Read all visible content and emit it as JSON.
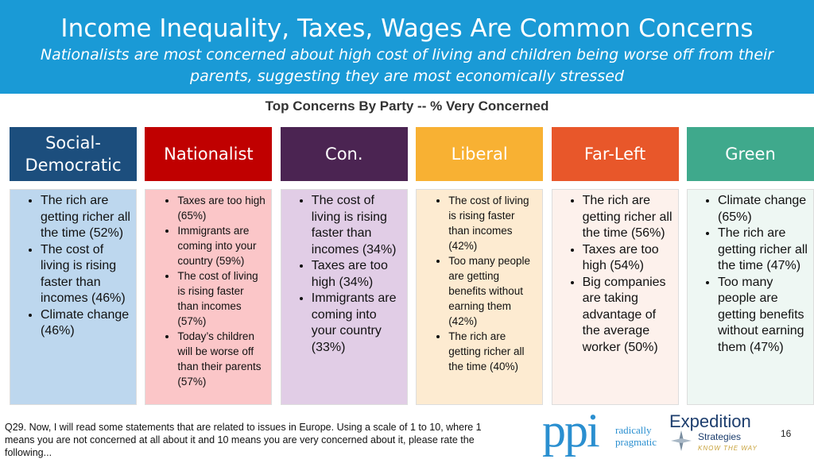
{
  "header": {
    "title": "Income Inequality, Taxes, Wages Are Common Concerns",
    "subtitle": "Nationalists are most concerned about high cost of living and children being worse off from their parents, suggesting they are most economically stressed"
  },
  "section_title": "Top Concerns By Party -- % Very Concerned",
  "columns": [
    {
      "party": "Social-Democratic",
      "items": [
        "The rich are getting richer all the time (52%)",
        "The cost of living is rising faster than incomes (46%)",
        "Climate change (46%)"
      ]
    },
    {
      "party": "Nationalist",
      "items": [
        "Taxes are too high (65%)",
        "Immigrants are coming into your country (59%)",
        "The cost of living is rising faster than incomes (57%)",
        "Today’s children will be worse off than their parents (57%)"
      ]
    },
    {
      "party": "Con.",
      "items": [
        "The cost of living is rising faster than incomes (34%)",
        "Taxes are too high (34%)",
        "Immigrants are coming into your country (33%)"
      ]
    },
    {
      "party": "Liberal",
      "items": [
        "The cost of living is rising faster than incomes (42%)",
        "Too many people are getting benefits without earning them (42%)",
        "The rich are getting richer all the time (40%)"
      ]
    },
    {
      "party": "Far-Left",
      "items": [
        "The rich are getting richer all the time (56%)",
        "Taxes are too high (54%)",
        "Big companies are taking advantage of the average worker (50%)"
      ]
    },
    {
      "party": "Green",
      "items": [
        "Climate change (65%)",
        "The rich are getting richer all the time (47%)",
        "Too many people are getting benefits without earning them (47%)"
      ]
    }
  ],
  "footnote": "Q29. Now, I will read some statements that are related to issues in Europe.  Using a scale of 1 to 10, where 1 means you are not concerned at all about it and 10 means you are very concerned about it, please rate the following...",
  "logos": {
    "ppi": "ppi",
    "ppi_tagline_1": "radically",
    "ppi_tagline_2": "pragmatic",
    "expedition": "Expedition",
    "strategies": "Strategies",
    "expedition_tagline": "KNOW THE WAY"
  },
  "page_number": "16"
}
